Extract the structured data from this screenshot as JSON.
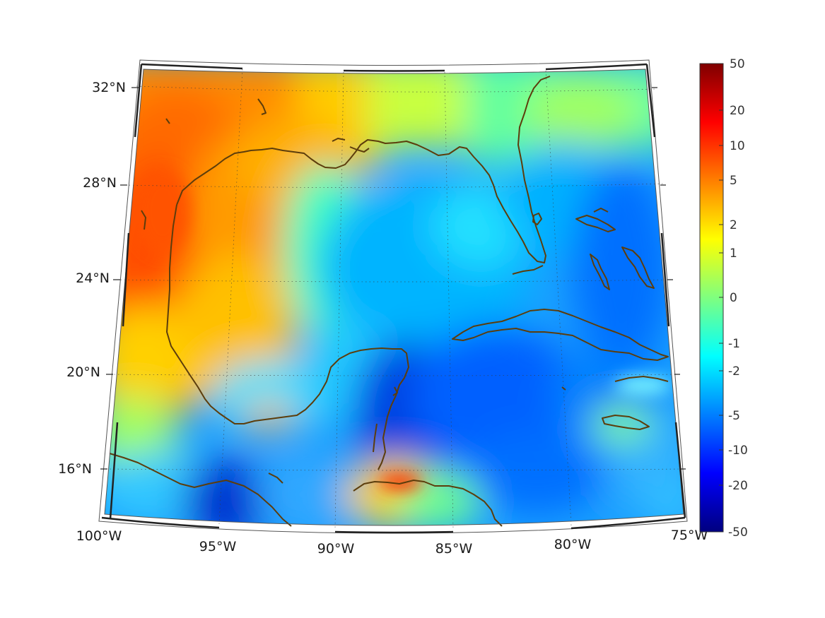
{
  "map": {
    "projection": "conic, Gulf of Mexico and Caribbean region",
    "lon_range": [
      -100,
      -75
    ],
    "lat_range": [
      14,
      33
    ],
    "coastline_color": "#5c3d0c",
    "longitude_labels": [
      "100°W",
      "95°W",
      "90°W",
      "85°W",
      "80°W",
      "75°W"
    ],
    "latitude_labels": [
      "32°N",
      "28°N",
      "24°N",
      "20°N",
      "16°N"
    ],
    "field_description": "gridded field shown with a jet colormap, warm values in the western Gulf, cool values in the eastern Gulf and Caribbean"
  },
  "colorbar": {
    "colormap": "jet",
    "scale": "nonlinear (symmetric log-like)",
    "tick_labels": [
      "50",
      "20",
      "10",
      "5",
      "2",
      "1",
      "0",
      "-1",
      "-2",
      "-5",
      "-10",
      "-20",
      "-50"
    ],
    "max_color": "#800000",
    "min_color": "#000080"
  }
}
